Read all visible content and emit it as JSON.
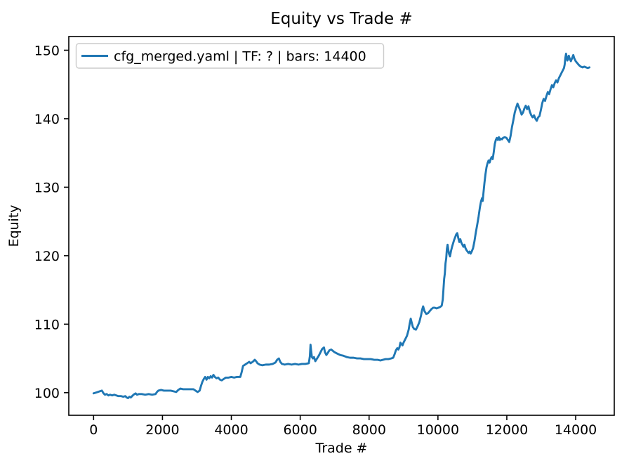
{
  "figure": {
    "title": "Equity vs Trade #",
    "xlabel": "Trade #",
    "ylabel": "Equity",
    "legend": {
      "label": "cfg_merged.yaml | TF: ? | bars: 14400",
      "position": "upper left",
      "border_color": "#cccccc"
    },
    "line_color": "#1f77b4",
    "background_color": "#ffffff",
    "spine_color": "#000000"
  },
  "chart_data": {
    "type": "line",
    "title": "Equity vs Trade #",
    "xlabel": "Trade #",
    "ylabel": "Equity",
    "legend": [
      "cfg_merged.yaml | TF: ? | bars: 14400"
    ],
    "legend_position": "upper left",
    "grid": false,
    "xlim": [
      -720,
      15120
    ],
    "ylim": [
      96.7,
      152.0
    ],
    "x_ticks": [
      0,
      2000,
      4000,
      6000,
      8000,
      10000,
      12000,
      14000
    ],
    "y_ticks": [
      100,
      110,
      120,
      130,
      140,
      150
    ],
    "series": [
      {
        "name": "cfg_merged.yaml | TF: ? | bars: 14400",
        "color": "#1f77b4",
        "points": [
          [
            0,
            99.9
          ],
          [
            60,
            100.0
          ],
          [
            120,
            100.1
          ],
          [
            180,
            100.2
          ],
          [
            240,
            100.3
          ],
          [
            290,
            99.9
          ],
          [
            330,
            99.7
          ],
          [
            380,
            99.8
          ],
          [
            430,
            99.6
          ],
          [
            480,
            99.7
          ],
          [
            540,
            99.6
          ],
          [
            600,
            99.7
          ],
          [
            660,
            99.6
          ],
          [
            720,
            99.5
          ],
          [
            800,
            99.5
          ],
          [
            860,
            99.4
          ],
          [
            920,
            99.5
          ],
          [
            960,
            99.3
          ],
          [
            1000,
            99.2
          ],
          [
            1040,
            99.4
          ],
          [
            1080,
            99.3
          ],
          [
            1120,
            99.5
          ],
          [
            1160,
            99.7
          ],
          [
            1220,
            99.9
          ],
          [
            1260,
            99.7
          ],
          [
            1320,
            99.8
          ],
          [
            1400,
            99.8
          ],
          [
            1500,
            99.7
          ],
          [
            1600,
            99.8
          ],
          [
            1700,
            99.7
          ],
          [
            1800,
            99.8
          ],
          [
            1840,
            100.1
          ],
          [
            1880,
            100.3
          ],
          [
            1960,
            100.4
          ],
          [
            2040,
            100.3
          ],
          [
            2140,
            100.3
          ],
          [
            2240,
            100.3
          ],
          [
            2320,
            100.2
          ],
          [
            2400,
            100.1
          ],
          [
            2460,
            100.4
          ],
          [
            2520,
            100.6
          ],
          [
            2600,
            100.5
          ],
          [
            2700,
            100.5
          ],
          [
            2800,
            100.5
          ],
          [
            2900,
            100.5
          ],
          [
            2960,
            100.3
          ],
          [
            3020,
            100.1
          ],
          [
            3080,
            100.3
          ],
          [
            3120,
            101.0
          ],
          [
            3160,
            101.6
          ],
          [
            3200,
            102.0
          ],
          [
            3240,
            102.3
          ],
          [
            3280,
            101.9
          ],
          [
            3320,
            102.3
          ],
          [
            3360,
            102.1
          ],
          [
            3400,
            102.4
          ],
          [
            3440,
            102.2
          ],
          [
            3480,
            102.6
          ],
          [
            3520,
            102.3
          ],
          [
            3570,
            102.1
          ],
          [
            3620,
            102.2
          ],
          [
            3670,
            101.9
          ],
          [
            3720,
            101.8
          ],
          [
            3780,
            102.0
          ],
          [
            3840,
            102.2
          ],
          [
            3920,
            102.2
          ],
          [
            4000,
            102.3
          ],
          [
            4080,
            102.2
          ],
          [
            4160,
            102.3
          ],
          [
            4260,
            102.3
          ],
          [
            4300,
            103.0
          ],
          [
            4340,
            103.9
          ],
          [
            4400,
            104.1
          ],
          [
            4460,
            104.3
          ],
          [
            4520,
            104.5
          ],
          [
            4560,
            104.3
          ],
          [
            4620,
            104.5
          ],
          [
            4680,
            104.8
          ],
          [
            4720,
            104.6
          ],
          [
            4760,
            104.3
          ],
          [
            4820,
            104.1
          ],
          [
            4900,
            104.0
          ],
          [
            5000,
            104.1
          ],
          [
            5100,
            104.1
          ],
          [
            5200,
            104.2
          ],
          [
            5280,
            104.4
          ],
          [
            5330,
            104.8
          ],
          [
            5380,
            105.0
          ],
          [
            5420,
            104.5
          ],
          [
            5470,
            104.2
          ],
          [
            5550,
            104.1
          ],
          [
            5650,
            104.2
          ],
          [
            5750,
            104.1
          ],
          [
            5850,
            104.2
          ],
          [
            5950,
            104.1
          ],
          [
            6050,
            104.2
          ],
          [
            6150,
            104.2
          ],
          [
            6250,
            104.3
          ],
          [
            6280,
            105.3
          ],
          [
            6300,
            107.0
          ],
          [
            6320,
            106.0
          ],
          [
            6340,
            105.2
          ],
          [
            6370,
            105.0
          ],
          [
            6400,
            105.2
          ],
          [
            6440,
            104.6
          ],
          [
            6490,
            105.0
          ],
          [
            6540,
            105.4
          ],
          [
            6590,
            105.9
          ],
          [
            6640,
            106.4
          ],
          [
            6690,
            106.6
          ],
          [
            6720,
            105.9
          ],
          [
            6760,
            105.5
          ],
          [
            6800,
            105.8
          ],
          [
            6850,
            106.2
          ],
          [
            6900,
            106.3
          ],
          [
            6950,
            106.1
          ],
          [
            7000,
            105.9
          ],
          [
            7080,
            105.7
          ],
          [
            7160,
            105.5
          ],
          [
            7250,
            105.4
          ],
          [
            7350,
            105.2
          ],
          [
            7450,
            105.1
          ],
          [
            7550,
            105.1
          ],
          [
            7650,
            105.0
          ],
          [
            7750,
            105.0
          ],
          [
            7850,
            104.9
          ],
          [
            7950,
            104.9
          ],
          [
            8050,
            104.9
          ],
          [
            8150,
            104.8
          ],
          [
            8250,
            104.8
          ],
          [
            8330,
            104.7
          ],
          [
            8400,
            104.8
          ],
          [
            8480,
            104.9
          ],
          [
            8560,
            104.9
          ],
          [
            8640,
            105.0
          ],
          [
            8700,
            105.1
          ],
          [
            8740,
            105.6
          ],
          [
            8780,
            106.2
          ],
          [
            8820,
            106.5
          ],
          [
            8850,
            106.3
          ],
          [
            8880,
            106.6
          ],
          [
            8910,
            107.3
          ],
          [
            8940,
            107.1
          ],
          [
            8970,
            106.9
          ],
          [
            9000,
            107.3
          ],
          [
            9050,
            107.8
          ],
          [
            9100,
            108.3
          ],
          [
            9150,
            109.2
          ],
          [
            9180,
            110.1
          ],
          [
            9210,
            110.8
          ],
          [
            9240,
            110.2
          ],
          [
            9270,
            109.6
          ],
          [
            9310,
            109.3
          ],
          [
            9360,
            109.2
          ],
          [
            9410,
            109.7
          ],
          [
            9460,
            110.3
          ],
          [
            9510,
            111.3
          ],
          [
            9540,
            112.1
          ],
          [
            9570,
            112.6
          ],
          [
            9610,
            111.9
          ],
          [
            9660,
            111.5
          ],
          [
            9710,
            111.6
          ],
          [
            9760,
            111.9
          ],
          [
            9810,
            112.2
          ],
          [
            9860,
            112.4
          ],
          [
            9910,
            112.4
          ],
          [
            9960,
            112.3
          ],
          [
            10010,
            112.4
          ],
          [
            10060,
            112.5
          ],
          [
            10110,
            112.7
          ],
          [
            10140,
            113.6
          ],
          [
            10160,
            115.1
          ],
          [
            10180,
            116.6
          ],
          [
            10200,
            117.4
          ],
          [
            10220,
            118.9
          ],
          [
            10240,
            119.6
          ],
          [
            10260,
            121.0
          ],
          [
            10280,
            121.6
          ],
          [
            10300,
            120.9
          ],
          [
            10320,
            120.3
          ],
          [
            10350,
            119.9
          ],
          [
            10380,
            120.7
          ],
          [
            10410,
            121.3
          ],
          [
            10440,
            121.8
          ],
          [
            10470,
            122.3
          ],
          [
            10500,
            122.7
          ],
          [
            10530,
            123.1
          ],
          [
            10560,
            123.3
          ],
          [
            10590,
            122.6
          ],
          [
            10620,
            122.0
          ],
          [
            10650,
            122.4
          ],
          [
            10680,
            121.9
          ],
          [
            10710,
            121.6
          ],
          [
            10740,
            121.3
          ],
          [
            10770,
            121.6
          ],
          [
            10800,
            121.1
          ],
          [
            10830,
            120.8
          ],
          [
            10860,
            120.6
          ],
          [
            10890,
            120.4
          ],
          [
            10920,
            120.6
          ],
          [
            10950,
            120.3
          ],
          [
            10980,
            120.6
          ],
          [
            11020,
            121.1
          ],
          [
            11060,
            122.1
          ],
          [
            11100,
            123.4
          ],
          [
            11140,
            124.5
          ],
          [
            11180,
            125.7
          ],
          [
            11220,
            127.1
          ],
          [
            11250,
            127.9
          ],
          [
            11280,
            128.4
          ],
          [
            11300,
            128.0
          ],
          [
            11320,
            129.1
          ],
          [
            11350,
            130.6
          ],
          [
            11380,
            131.9
          ],
          [
            11410,
            132.9
          ],
          [
            11440,
            133.5
          ],
          [
            11470,
            133.9
          ],
          [
            11500,
            133.6
          ],
          [
            11530,
            134.1
          ],
          [
            11560,
            134.4
          ],
          [
            11590,
            134.1
          ],
          [
            11620,
            135.1
          ],
          [
            11650,
            136.3
          ],
          [
            11680,
            136.9
          ],
          [
            11710,
            137.2
          ],
          [
            11740,
            136.9
          ],
          [
            11770,
            137.3
          ],
          [
            11800,
            136.9
          ],
          [
            11830,
            137.1
          ],
          [
            11860,
            137.0
          ],
          [
            11890,
            137.2
          ],
          [
            11940,
            137.3
          ],
          [
            11990,
            137.2
          ],
          [
            12030,
            136.9
          ],
          [
            12070,
            136.6
          ],
          [
            12110,
            137.5
          ],
          [
            12150,
            138.8
          ],
          [
            12190,
            139.8
          ],
          [
            12230,
            140.9
          ],
          [
            12270,
            141.6
          ],
          [
            12310,
            142.2
          ],
          [
            12350,
            141.7
          ],
          [
            12390,
            141.2
          ],
          [
            12430,
            140.6
          ],
          [
            12470,
            140.9
          ],
          [
            12510,
            141.5
          ],
          [
            12550,
            141.9
          ],
          [
            12590,
            141.4
          ],
          [
            12630,
            141.8
          ],
          [
            12670,
            141.0
          ],
          [
            12710,
            140.5
          ],
          [
            12750,
            140.2
          ],
          [
            12790,
            140.5
          ],
          [
            12830,
            140.0
          ],
          [
            12870,
            139.7
          ],
          [
            12910,
            140.2
          ],
          [
            12950,
            140.4
          ],
          [
            12990,
            141.3
          ],
          [
            13030,
            142.3
          ],
          [
            13070,
            142.9
          ],
          [
            13110,
            142.6
          ],
          [
            13150,
            143.3
          ],
          [
            13190,
            143.9
          ],
          [
            13230,
            143.6
          ],
          [
            13270,
            144.3
          ],
          [
            13310,
            144.9
          ],
          [
            13350,
            144.6
          ],
          [
            13390,
            145.2
          ],
          [
            13430,
            145.6
          ],
          [
            13470,
            145.3
          ],
          [
            13510,
            145.9
          ],
          [
            13550,
            146.3
          ],
          [
            13590,
            146.7
          ],
          [
            13630,
            147.1
          ],
          [
            13660,
            147.4
          ],
          [
            13680,
            147.9
          ],
          [
            13700,
            148.9
          ],
          [
            13720,
            149.5
          ],
          [
            13740,
            148.9
          ],
          [
            13760,
            148.5
          ],
          [
            13780,
            148.8
          ],
          [
            13800,
            149.2
          ],
          [
            13830,
            148.7
          ],
          [
            13860,
            148.4
          ],
          [
            13900,
            148.9
          ],
          [
            13930,
            149.3
          ],
          [
            13960,
            148.8
          ],
          [
            14000,
            148.4
          ],
          [
            14050,
            148.1
          ],
          [
            14100,
            147.8
          ],
          [
            14150,
            147.6
          ],
          [
            14200,
            147.5
          ],
          [
            14250,
            147.6
          ],
          [
            14300,
            147.5
          ],
          [
            14350,
            147.4
          ],
          [
            14400,
            147.5
          ]
        ]
      }
    ]
  }
}
